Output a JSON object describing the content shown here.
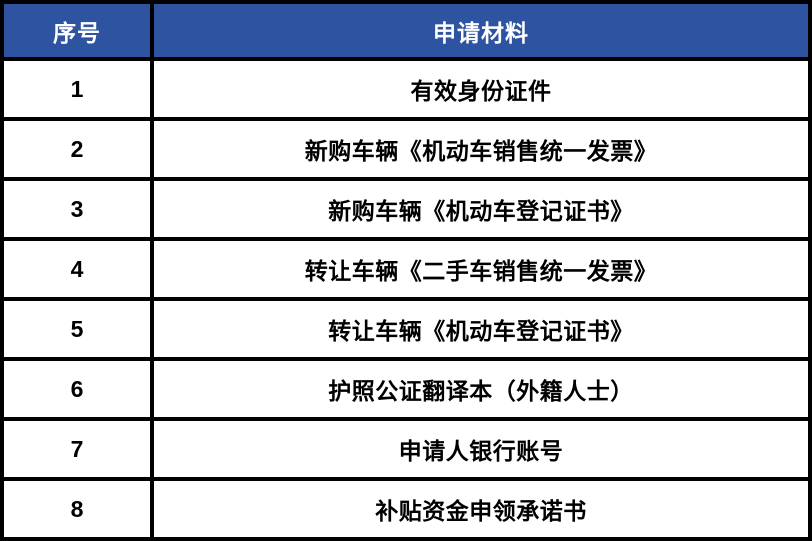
{
  "table": {
    "headers": [
      {
        "label": "序号"
      },
      {
        "label": "申请材料"
      }
    ],
    "rows": [
      {
        "no": "1",
        "material": "有效身份证件"
      },
      {
        "no": "2",
        "material": "新购车辆《机动车销售统一发票》"
      },
      {
        "no": "3",
        "material": "新购车辆《机动车登记证书》"
      },
      {
        "no": "4",
        "material": "转让车辆《二手车销售统一发票》"
      },
      {
        "no": "5",
        "material": "转让车辆《机动车登记证书》"
      },
      {
        "no": "6",
        "material": "护照公证翻译本（外籍人士）"
      },
      {
        "no": "7",
        "material": "申请人银行账号"
      },
      {
        "no": "8",
        "material": "补贴资金申领承诺书"
      }
    ],
    "colors": {
      "header_bg": "#2E53A1",
      "header_text": "#FFFFFF",
      "body_text": "#000000",
      "border": "#000000",
      "row_bg": "#FFFFFF"
    }
  }
}
